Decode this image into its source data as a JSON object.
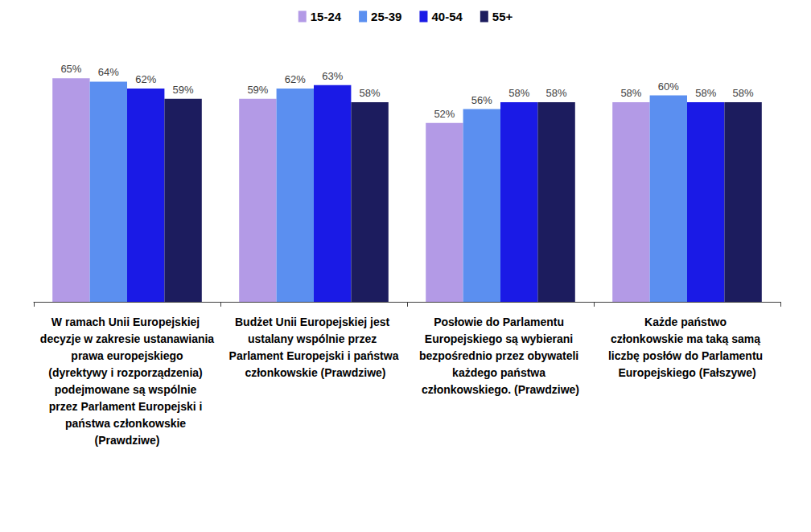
{
  "chart_data": {
    "type": "bar",
    "categories": [
      "W ramach Unii Europejskiej decyzje w zakresie ustanawiania prawa europejskiego (dyrektywy i rozporządzenia) podejmowane są wspólnie przez Parlament Europejski i państwa członkowskie (Prawdziwe)",
      "Budżet Unii Europejskiej jest ustalany wspólnie przez Parlament Europejski i państwa członkowskie (Prawdziwe)",
      "Posłowie do Parlamentu Europejskiego są wybierani bezpośrednio przez obywateli każdego państwa członkowskiego. (Prawdziwe)",
      "Każde państwo członkowskie ma taką samą liczbę posłów do Parlamentu Europejskiego (Fałszywe)"
    ],
    "series": [
      {
        "name": "15-24",
        "color": "#b39ae6",
        "values": [
          65,
          59,
          52,
          58
        ],
        "value_labels": [
          "65%",
          "59%",
          "52%",
          "58%"
        ]
      },
      {
        "name": "25-39",
        "color": "#5b8ff0",
        "values": [
          64,
          62,
          56,
          60
        ],
        "value_labels": [
          "64%",
          "62%",
          "56%",
          "60%"
        ]
      },
      {
        "name": "40-54",
        "color": "#1a1ae6",
        "values": [
          62,
          63,
          58,
          58
        ],
        "value_labels": [
          "62%",
          "63%",
          "58%",
          "58%"
        ]
      },
      {
        "name": "55+",
        "color": "#1c1c5e",
        "values": [
          59,
          58,
          58,
          58
        ],
        "value_labels": [
          "59%",
          "58%",
          "58%",
          "58%"
        ]
      }
    ],
    "ylim": [
      0,
      80
    ],
    "legend": "top",
    "data_labels": true,
    "tick_labels": "x",
    "grid": false
  }
}
